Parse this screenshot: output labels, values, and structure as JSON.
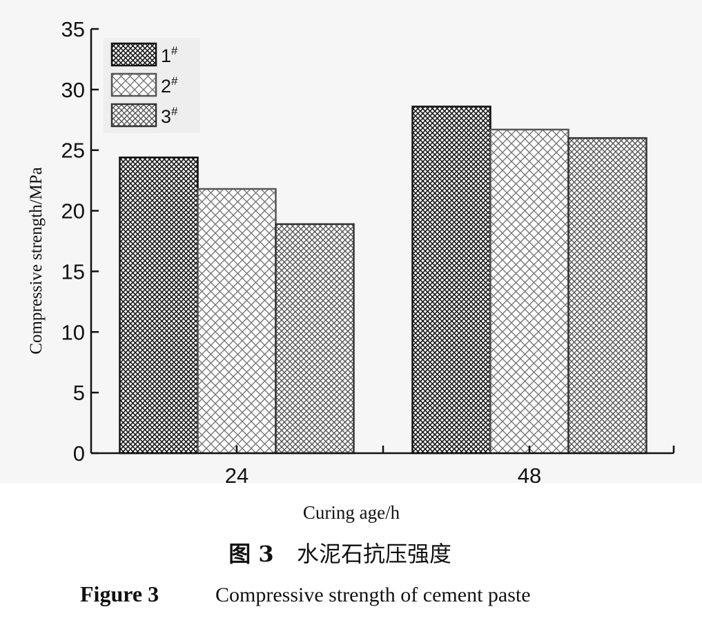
{
  "chart_data": {
    "type": "bar",
    "categories": [
      "24",
      "48"
    ],
    "series": [
      {
        "name": "1",
        "sup": "#",
        "values": [
          24.4,
          28.6
        ],
        "pattern": "dense-cross"
      },
      {
        "name": "2",
        "sup": "#",
        "values": [
          21.8,
          26.7
        ],
        "pattern": "open-cross"
      },
      {
        "name": "3",
        "sup": "#",
        "values": [
          18.9,
          26.0
        ],
        "pattern": "medium-cross"
      }
    ],
    "xlabel": "Curing age/h",
    "ylabel": "Compressive strength/MPa",
    "ylim": [
      0,
      35
    ],
    "yticks": [
      0,
      5,
      10,
      15,
      20,
      25,
      30,
      35
    ],
    "legend_position": "top-left",
    "grid": false
  },
  "caption": {
    "cn_label": "图 3",
    "cn_text": "水泥石抗压强度",
    "en_label": "Figure 3",
    "en_text": "Compressive strength of cement paste"
  },
  "colors": {
    "background": "#ffffff",
    "plot_background": "#f6f6f6",
    "axis": "#111111",
    "pattern_dark": "#1a1a1a",
    "pattern_mid": "#555555",
    "pattern_light": "#777777"
  }
}
